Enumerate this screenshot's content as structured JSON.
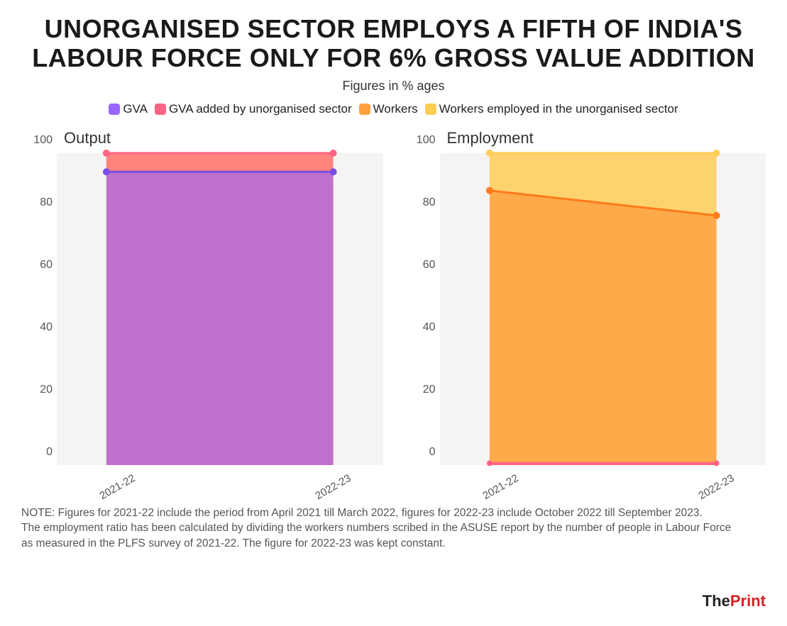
{
  "title": "UNORGANISED SECTOR EMPLOYS A FIFTH OF INDIA'S LABOUR FORCE ONLY FOR 6% GROSS VALUE ADDITION",
  "subtitle": "Figures in % ages",
  "legend": [
    {
      "label": "GVA",
      "color": "#9966ff"
    },
    {
      "label": "GVA added by unorganised sector",
      "color": "#ff6384"
    },
    {
      "label": "Workers",
      "color": "#ff9f40"
    },
    {
      "label": "Workers employed in the unorganised sector",
      "color": "#ffcd56"
    }
  ],
  "yaxis": {
    "min": 0,
    "max": 100,
    "ticks": [
      0,
      20,
      40,
      60,
      80,
      100
    ],
    "tick_fontsize": 16
  },
  "xaxis": {
    "categories": [
      "2021-22",
      "2022-23"
    ],
    "tick_fontsize": 15,
    "rotation": -30
  },
  "plot_bg": "#f6f3f3",
  "panels": [
    {
      "title": "Output",
      "series": [
        {
          "name": "yellow",
          "color": "#ffcd56",
          "fill_opacity": 0.85,
          "values": [
            100,
            100
          ],
          "line_width": 3,
          "marker_r": 5,
          "marker_color": "#ffcd56"
        },
        {
          "name": "pink",
          "color": "#ff6384",
          "fill_opacity": 0.7,
          "values": [
            100,
            100
          ],
          "line_width": 3,
          "marker_r": 5,
          "marker_color": "#ff6384"
        },
        {
          "name": "purple",
          "color": "#9966ff",
          "fill_opacity": 0.62,
          "values": [
            94,
            94
          ],
          "line_width": 3,
          "marker_r": 5,
          "marker_color": "#7a4ee6"
        }
      ]
    },
    {
      "title": "Employment",
      "series": [
        {
          "name": "yellow",
          "color": "#ffcd56",
          "fill_opacity": 0.85,
          "values": [
            100,
            100
          ],
          "line_width": 3,
          "marker_r": 5,
          "marker_color": "#ffcd56"
        },
        {
          "name": "orange",
          "color": "#ff9f40",
          "fill_opacity": 0.78,
          "values": [
            88,
            80
          ],
          "line_width": 3,
          "marker_r": 5,
          "marker_color": "#ff7a1a"
        },
        {
          "name": "pink",
          "color": "#ff6384",
          "fill_opacity": 0.9,
          "values": [
            0.6,
            0.6
          ],
          "line_width": 3,
          "marker_r": 4,
          "marker_color": "#ff6384"
        }
      ]
    }
  ],
  "note_para1": "NOTE: Figures for 2021-22 include the period from April 2021 till March 2022, figures for 2022-23 include October 2022 till September 2023.",
  "note_para2": "The employment ratio has been calculated by dividing the workers numbers scribed in the ASUSE report by the number of people in Labour Force as measured in the PLFS survey of 2021-22. The figure for 2022-23 was kept constant.",
  "brand": {
    "the": "The",
    "print": "Print",
    "the_color": "#222222",
    "print_color": "#d92121"
  }
}
